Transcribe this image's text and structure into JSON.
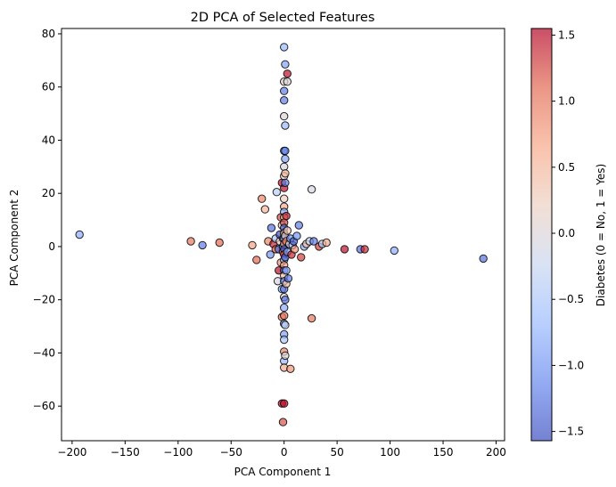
{
  "chart_data": {
    "type": "scatter",
    "title": "2D PCA of Selected Features",
    "xlabel": "PCA Component 1",
    "ylabel": "PCA Component 2",
    "xlim": [
      -210,
      208
    ],
    "ylim": [
      -73,
      82
    ],
    "xticks": [
      -200,
      -150,
      -100,
      -50,
      0,
      50,
      100,
      150,
      200
    ],
    "yticks": [
      -60,
      -40,
      -20,
      0,
      20,
      40,
      60,
      80
    ],
    "grid": false,
    "colorbar": {
      "label": "Diabetes (0 = No, 1 = Yes)",
      "range": [
        -1.57,
        1.55
      ],
      "ticks": [
        -1.5,
        -1.0,
        -0.5,
        0.0,
        0.5,
        1.0,
        1.5
      ],
      "colormap": "coolwarm",
      "alpha": 0.7,
      "colors": [
        "#3b4cc0",
        "#6788ee",
        "#9abbff",
        "#c9d7f0",
        "#edd1c2",
        "#f7a889",
        "#e26952",
        "#b40426"
      ]
    },
    "points": [
      [
        -193,
        4.5,
        -0.8
      ],
      [
        -88,
        2,
        1.0
      ],
      [
        -77,
        0.5,
        -1.2
      ],
      [
        -61,
        1.5,
        1.1
      ],
      [
        -30,
        0.5,
        0.7
      ],
      [
        -26,
        -5,
        1.1
      ],
      [
        -21,
        18,
        0.9
      ],
      [
        -18,
        14,
        0.5
      ],
      [
        -15,
        2,
        0.9
      ],
      [
        -13,
        -3,
        -1.0
      ],
      [
        -12,
        7,
        -1.3
      ],
      [
        -10,
        1,
        1.4
      ],
      [
        -8,
        -1,
        1.2
      ],
      [
        -8,
        3,
        -0.5
      ],
      [
        -7,
        20.5,
        -0.4
      ],
      [
        -6,
        -13,
        -0.1
      ],
      [
        -5,
        -9,
        1.5
      ],
      [
        -5,
        -1,
        -1.3
      ],
      [
        -4,
        2,
        0.3
      ],
      [
        -4,
        4.5,
        -1.5
      ],
      [
        -3,
        -6,
        0.8
      ],
      [
        -3,
        11,
        1.2
      ],
      [
        -2,
        -59,
        1.5
      ],
      [
        -2,
        -26.5,
        0.9
      ],
      [
        -2,
        -16,
        -0.7
      ],
      [
        -2,
        8,
        0.2
      ],
      [
        -2,
        24,
        1.5
      ],
      [
        -1,
        0,
        -1.0
      ],
      [
        -1,
        -2,
        1.0
      ],
      [
        -1,
        3,
        0.0
      ],
      [
        0,
        75,
        -0.7
      ],
      [
        1,
        68.5,
        -0.9
      ],
      [
        0,
        62,
        0.1
      ],
      [
        0,
        58.5,
        -1.2
      ],
      [
        0,
        55,
        -1.2
      ],
      [
        0,
        49,
        0.0
      ],
      [
        1,
        45.5,
        -0.7
      ],
      [
        0,
        36,
        -1.0
      ],
      [
        1,
        33,
        -0.9
      ],
      [
        0,
        30,
        -0.1
      ],
      [
        0,
        26.5,
        0.2
      ],
      [
        0,
        22,
        1.5
      ],
      [
        0,
        18,
        0.2
      ],
      [
        0,
        15,
        0.6
      ],
      [
        0,
        13,
        -0.8
      ],
      [
        0,
        11,
        0.3
      ],
      [
        0,
        9,
        1.2
      ],
      [
        0,
        7,
        -1.4
      ],
      [
        0,
        5,
        0.8
      ],
      [
        0,
        3,
        -1.3
      ],
      [
        0,
        1,
        0.9
      ],
      [
        0,
        -1,
        -1.5
      ],
      [
        0,
        -3,
        1.3
      ],
      [
        0,
        -5,
        -0.6
      ],
      [
        0,
        -7,
        0.7
      ],
      [
        0,
        -9,
        -1.4
      ],
      [
        0,
        -11,
        0.4
      ],
      [
        0,
        -13,
        -1.2
      ],
      [
        0,
        -16,
        -1.3
      ],
      [
        0,
        -19,
        0.0
      ],
      [
        0,
        -23,
        -0.8
      ],
      [
        0,
        -26,
        1.0
      ],
      [
        0,
        -29,
        -1.0
      ],
      [
        0,
        -33,
        -0.9
      ],
      [
        0,
        -35,
        -0.5
      ],
      [
        0,
        -39.5,
        0.9
      ],
      [
        0,
        -43,
        -0.7
      ],
      [
        0,
        -45.5,
        0.6
      ],
      [
        0,
        -59,
        1.5
      ],
      [
        -1,
        -66,
        1.2
      ],
      [
        1,
        24,
        -1.2
      ],
      [
        1,
        27.5,
        0.5
      ],
      [
        1,
        36,
        -1.2
      ],
      [
        1,
        4,
        0.0
      ],
      [
        1,
        -4,
        -1.4
      ],
      [
        1,
        -20,
        -1.3
      ],
      [
        1,
        -29.5,
        -0.3
      ],
      [
        1,
        -41,
        0.0
      ],
      [
        2,
        11.5,
        1.4
      ],
      [
        2,
        2,
        0.9
      ],
      [
        2,
        -9,
        -0.8
      ],
      [
        2,
        -14,
        0.4
      ],
      [
        3,
        62,
        0.0
      ],
      [
        3,
        65,
        1.5
      ],
      [
        3,
        6,
        0.3
      ],
      [
        3,
        -2,
        -0.9
      ],
      [
        4,
        -12,
        -1.2
      ],
      [
        5,
        1,
        -0.3
      ],
      [
        6,
        -46,
        0.8
      ],
      [
        6,
        3,
        -1.0
      ],
      [
        7,
        -3,
        1.4
      ],
      [
        8,
        0.5,
        -0.6
      ],
      [
        9,
        2,
        -1.4
      ],
      [
        10,
        -1,
        0.8
      ],
      [
        12,
        4,
        -1.0
      ],
      [
        14,
        8,
        -1.2
      ],
      [
        16,
        -4,
        1.3
      ],
      [
        19,
        0,
        -0.8
      ],
      [
        21,
        1,
        0.4
      ],
      [
        24,
        2,
        -0.3
      ],
      [
        26,
        21.5,
        -0.1
      ],
      [
        26,
        -27,
        1.0
      ],
      [
        28,
        2,
        -1.2
      ],
      [
        33,
        0,
        1.3
      ],
      [
        36,
        1,
        -0.4
      ],
      [
        40,
        1.5,
        0.6
      ],
      [
        57,
        -1,
        1.5
      ],
      [
        72,
        -1,
        -1.3
      ],
      [
        76,
        -1,
        1.4
      ],
      [
        104,
        -1.5,
        -0.8
      ],
      [
        188,
        -4.5,
        -1.3
      ]
    ]
  }
}
